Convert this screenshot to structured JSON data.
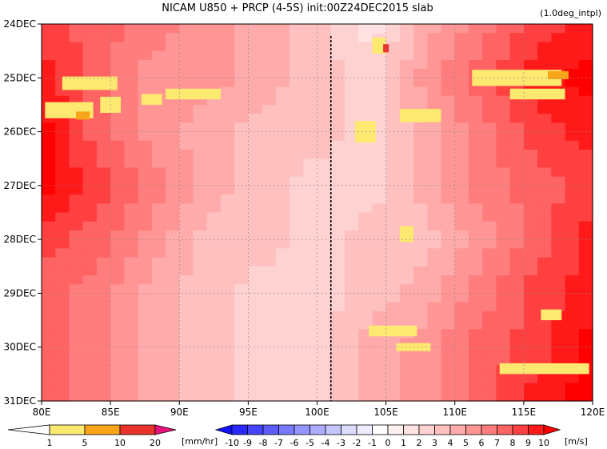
{
  "chart_data": {
    "type": "heatmap",
    "title": "NICAM   U850 + PRCP (4-5S) init:00Z24DEC2015 slab",
    "annotation": "(1.0deg_intpl)",
    "x_axis": {
      "min": 80,
      "max": 120,
      "ticks": [
        80,
        85,
        90,
        95,
        100,
        105,
        110,
        115,
        120
      ],
      "tick_labels": [
        "80E",
        "85E",
        "90E",
        "95E",
        "100E",
        "105E",
        "110E",
        "115E",
        "120E"
      ]
    },
    "y_axis": {
      "top_day": 24,
      "bottom_day": 31,
      "tick_labels": [
        "24DEC",
        "25DEC",
        "26DEC",
        "27DEC",
        "28DEC",
        "29DEC",
        "30DEC",
        "31DEC"
      ]
    },
    "grid": true,
    "marker_line": {
      "lon": 101,
      "style": "dotted"
    },
    "u850_field": {
      "units": "m/s",
      "lon": [
        80,
        84,
        88,
        92,
        96,
        100,
        104,
        108,
        112,
        116,
        120
      ],
      "rows": [
        {
          "day": 24.0,
          "values": [
            8,
            7,
            6,
            5,
            4,
            3,
            1,
            4,
            6,
            8,
            9
          ]
        },
        {
          "day": 25.0,
          "values": [
            9,
            7,
            5,
            5,
            4,
            3,
            2,
            5,
            7,
            9,
            10
          ]
        },
        {
          "day": 26.0,
          "values": [
            10,
            7,
            5,
            4,
            3,
            3,
            2,
            4,
            6,
            8,
            9
          ]
        },
        {
          "day": 27.0,
          "values": [
            10,
            8,
            6,
            4,
            3,
            2,
            2,
            4,
            6,
            7,
            8
          ]
        },
        {
          "day": 28.0,
          "values": [
            8,
            7,
            5,
            3,
            3,
            2,
            3,
            3,
            5,
            7,
            9
          ]
        },
        {
          "day": 29.0,
          "values": [
            7,
            6,
            4,
            3,
            2,
            2,
            3,
            4,
            6,
            8,
            9
          ]
        },
        {
          "day": 30.0,
          "values": [
            7,
            6,
            4,
            3,
            2,
            2,
            4,
            5,
            7,
            8,
            10
          ]
        },
        {
          "day": 31.0,
          "values": [
            7,
            6,
            4,
            3,
            2,
            2,
            4,
            5,
            7,
            9,
            10
          ]
        }
      ]
    },
    "precip_patches": [
      {
        "lon": 82.0,
        "day": 25.6,
        "w": 3.5,
        "h": 0.3,
        "level": 1
      },
      {
        "lon": 83.5,
        "day": 25.1,
        "w": 4.0,
        "h": 0.25,
        "level": 1
      },
      {
        "lon": 85.0,
        "day": 25.5,
        "w": 1.5,
        "h": 0.3,
        "level": 1
      },
      {
        "lon": 88.0,
        "day": 25.4,
        "w": 1.5,
        "h": 0.2,
        "level": 1
      },
      {
        "lon": 91.0,
        "day": 25.3,
        "w": 4.0,
        "h": 0.2,
        "level": 1
      },
      {
        "lon": 104.5,
        "day": 24.4,
        "w": 1.0,
        "h": 0.3,
        "level": 1
      },
      {
        "lon": 107.5,
        "day": 25.7,
        "w": 3.0,
        "h": 0.25,
        "level": 1
      },
      {
        "lon": 114.5,
        "day": 25.0,
        "w": 6.5,
        "h": 0.3,
        "level": 1
      },
      {
        "lon": 116.0,
        "day": 25.3,
        "w": 4.0,
        "h": 0.2,
        "level": 1
      },
      {
        "lon": 103.5,
        "day": 26.0,
        "w": 1.5,
        "h": 0.4,
        "level": 1
      },
      {
        "lon": 106.5,
        "day": 27.9,
        "w": 1.0,
        "h": 0.3,
        "level": 1
      },
      {
        "lon": 105.5,
        "day": 29.7,
        "w": 3.5,
        "h": 0.2,
        "level": 1
      },
      {
        "lon": 107.0,
        "day": 30.0,
        "w": 2.5,
        "h": 0.15,
        "level": 1
      },
      {
        "lon": 116.5,
        "day": 30.4,
        "w": 6.5,
        "h": 0.2,
        "level": 1
      },
      {
        "lon": 117.0,
        "day": 29.4,
        "w": 1.5,
        "h": 0.2,
        "level": 1
      },
      {
        "lon": 83.0,
        "day": 25.7,
        "w": 1.0,
        "h": 0.15,
        "level": 2
      },
      {
        "lon": 117.5,
        "day": 24.95,
        "w": 1.5,
        "h": 0.15,
        "level": 2
      },
      {
        "lon": 105.0,
        "day": 24.45,
        "w": 0.4,
        "h": 0.15,
        "level": 3
      }
    ]
  },
  "colorbars": {
    "precip": {
      "units_label": "[mm/hr]",
      "tick_labels": [
        "1",
        "5",
        "10",
        "20"
      ],
      "colors": [
        "#ffffff",
        "#fde870",
        "#f9a51a",
        "#e8322b",
        "#e8127f"
      ]
    },
    "wind": {
      "units_label": "[m/s]",
      "tick_labels": [
        "-10",
        "-9",
        "-8",
        "-7",
        "-6",
        "-5",
        "-4",
        "-3",
        "-2",
        "-1",
        "0",
        "1",
        "2",
        "3",
        "4",
        "5",
        "6",
        "7",
        "8",
        "9",
        "10"
      ],
      "colors": [
        "#1111ff",
        "#2929ff",
        "#4545ff",
        "#5d5dff",
        "#7979ff",
        "#9595ff",
        "#adadff",
        "#c5c5ff",
        "#dcdcff",
        "#ededff",
        "#ffffff",
        "#fff0f0",
        "#ffe3e3",
        "#ffd2d2",
        "#ffc0c0",
        "#ffabab",
        "#ff9595",
        "#ff7d7d",
        "#ff6363",
        "#ff4040",
        "#ff1a1a",
        "#ff0000"
      ]
    }
  }
}
